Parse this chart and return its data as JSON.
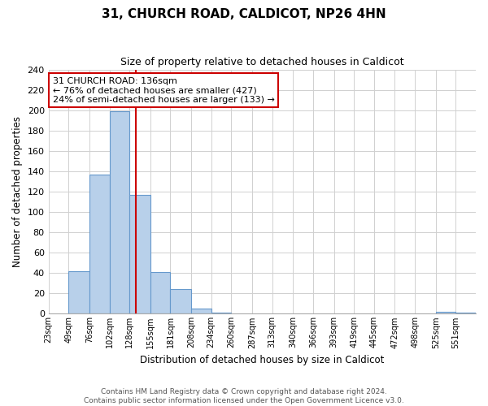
{
  "title": "31, CHURCH ROAD, CALDICOT, NP26 4HN",
  "subtitle": "Size of property relative to detached houses in Caldicot",
  "xlabel": "Distribution of detached houses by size in Caldicot",
  "ylabel": "Number of detached properties",
  "bin_labels": [
    "23sqm",
    "49sqm",
    "76sqm",
    "102sqm",
    "128sqm",
    "155sqm",
    "181sqm",
    "208sqm",
    "234sqm",
    "260sqm",
    "287sqm",
    "313sqm",
    "340sqm",
    "366sqm",
    "393sqm",
    "419sqm",
    "445sqm",
    "472sqm",
    "498sqm",
    "525sqm",
    "551sqm"
  ],
  "bin_edges": [
    23,
    49,
    76,
    102,
    128,
    155,
    181,
    208,
    234,
    260,
    287,
    313,
    340,
    366,
    393,
    419,
    445,
    472,
    498,
    525,
    551,
    577
  ],
  "bar_heights": [
    0,
    42,
    137,
    199,
    117,
    41,
    24,
    5,
    1,
    0,
    0,
    0,
    0,
    0,
    0,
    0,
    0,
    0,
    0,
    2,
    1
  ],
  "bar_color": "#b8d0ea",
  "bar_edge_color": "#6699cc",
  "property_line_x": 136,
  "property_line_color": "#cc0000",
  "ylim": [
    0,
    240
  ],
  "yticks": [
    0,
    20,
    40,
    60,
    80,
    100,
    120,
    140,
    160,
    180,
    200,
    220,
    240
  ],
  "annotation_title": "31 CHURCH ROAD: 136sqm",
  "annotation_line1": "← 76% of detached houses are smaller (427)",
  "annotation_line2": "24% of semi-detached houses are larger (133) →",
  "annotation_box_color": "#ffffff",
  "annotation_box_edge": "#cc0000",
  "footer_line1": "Contains HM Land Registry data © Crown copyright and database right 2024.",
  "footer_line2": "Contains public sector information licensed under the Open Government Licence v3.0.",
  "background_color": "#ffffff",
  "grid_color": "#d0d0d0"
}
